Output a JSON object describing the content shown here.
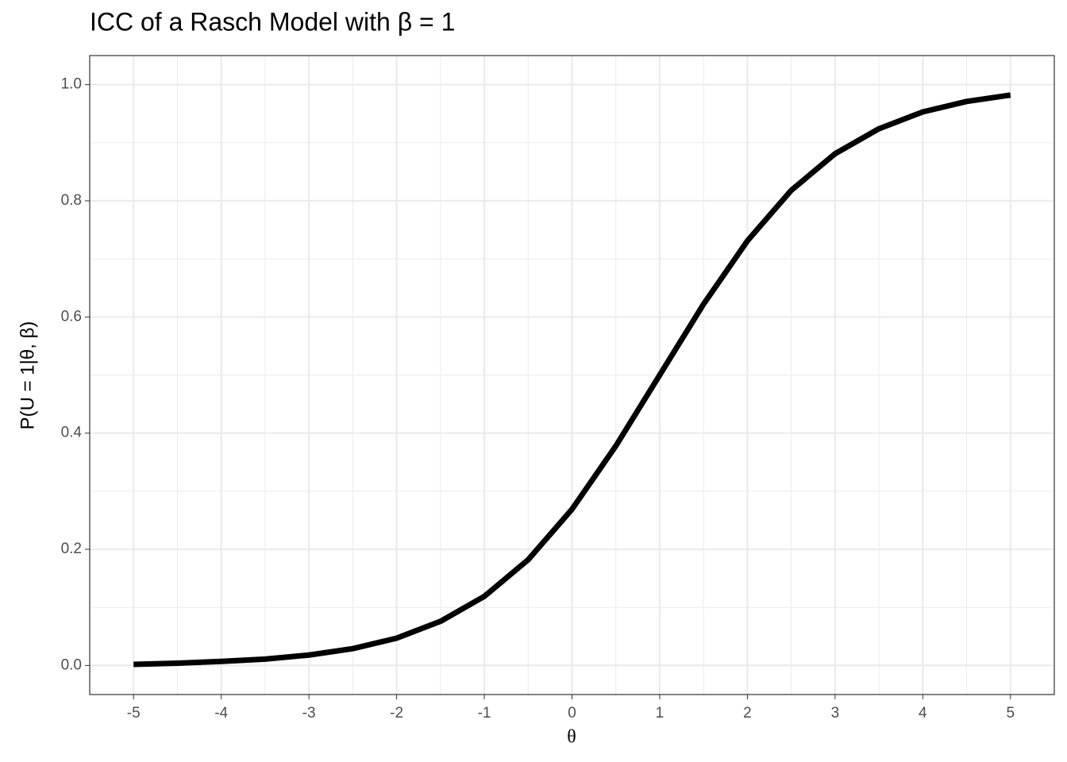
{
  "chart_data": {
    "type": "line",
    "title": "ICC of a Rasch Model with β = 1",
    "x_label": "θ",
    "y_label": "P(U = 1|θ, β)",
    "x": [
      -5,
      -4.5,
      -4,
      -3.5,
      -3,
      -2.5,
      -2,
      -1.5,
      -1,
      -0.5,
      0,
      0.5,
      1,
      1.5,
      2,
      2.5,
      3,
      3.5,
      4,
      4.5,
      5
    ],
    "series": [
      {
        "color": "#000000",
        "values": [
          0.002,
          0.004,
          0.007,
          0.011,
          0.018,
          0.029,
          0.047,
          0.076,
          0.119,
          0.182,
          0.269,
          0.378,
          0.5,
          0.622,
          0.731,
          0.818,
          0.881,
          0.924,
          0.953,
          0.971,
          0.982
        ]
      }
    ],
    "xlim": [
      -5.5,
      5.5
    ],
    "ylim": [
      -0.05,
      1.05
    ],
    "xticks": [
      -5,
      -4,
      -3,
      -2,
      -1,
      0,
      1,
      2,
      3,
      4,
      5
    ],
    "yticks": [
      {
        "value": 0,
        "label": "0.0"
      },
      0.2,
      0.4,
      0.6,
      0.8,
      {
        "value": 1,
        "label": "1.0"
      }
    ],
    "grid": true
  }
}
